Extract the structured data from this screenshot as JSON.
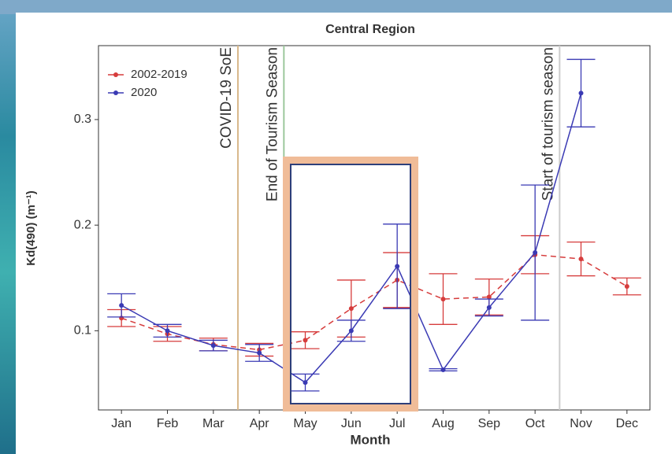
{
  "chart_data": {
    "type": "line-errorbar",
    "title": "Central Region",
    "x_label": "Month",
    "y_label": "Kd(490) (m⁻¹)",
    "categories": [
      "Jan",
      "Feb",
      "Mar",
      "Apr",
      "May",
      "Jun",
      "Jul",
      "Aug",
      "Sep",
      "Oct",
      "Nov",
      "Dec"
    ],
    "series": [
      {
        "name": "2002-2019",
        "color": "#d63c3c",
        "dashed": true,
        "values": [
          0.112,
          0.097,
          0.087,
          0.082,
          0.091,
          0.121,
          0.148,
          0.13,
          0.132,
          0.172,
          0.168,
          0.142
        ],
        "errors": [
          0.008,
          0.007,
          0.006,
          0.006,
          0.008,
          0.027,
          0.026,
          0.024,
          0.017,
          0.018,
          0.016,
          0.008
        ]
      },
      {
        "name": "2020",
        "color": "#3a3ab4",
        "dashed": false,
        "values": [
          0.124,
          0.1,
          0.086,
          0.079,
          0.051,
          0.1,
          0.161,
          0.063,
          0.122,
          0.174,
          0.325,
          null
        ],
        "errors": [
          0.011,
          0.006,
          0.005,
          0.008,
          0.008,
          0.01,
          0.04,
          0.001,
          0.008,
          0.064,
          0.032,
          null
        ]
      }
    ],
    "ylim": [
      0.025,
      0.37
    ],
    "yticks": [
      0.1,
      0.2,
      0.3
    ],
    "annotations": [
      {
        "text": "COVID-19 SoE",
        "after": "Mar",
        "color": "#d9b98c"
      },
      {
        "text": "End of Tourism Season",
        "after": "Apr",
        "color": "#9cc79c"
      },
      {
        "text": "Start of tourism season",
        "after": "Oct",
        "color": "#cccccc"
      }
    ],
    "legend": "top-left"
  }
}
